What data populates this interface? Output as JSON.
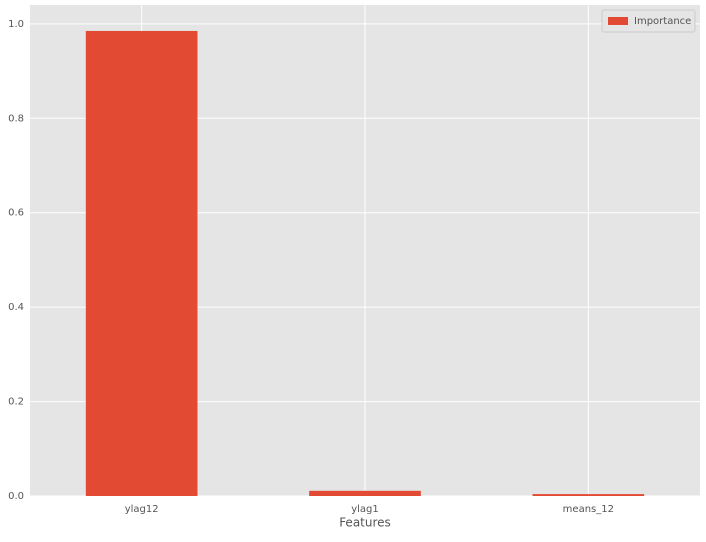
{
  "chart_data": {
    "type": "bar",
    "x_label": "Features",
    "categories": [
      "ylag12",
      "ylag1",
      "means_12"
    ],
    "series": [
      {
        "name": "Importance",
        "color": "#e24a33",
        "values": [
          0.985,
          0.011,
          0.004
        ]
      }
    ],
    "ylim": [
      0,
      1.04
    ],
    "yticks": [
      {
        "value": 0,
        "label": "0.0"
      },
      0.2,
      0.4,
      0.6,
      0.8,
      {
        "value": 1,
        "label": "1.0"
      }
    ],
    "grid": true,
    "legend": "upper right"
  }
}
